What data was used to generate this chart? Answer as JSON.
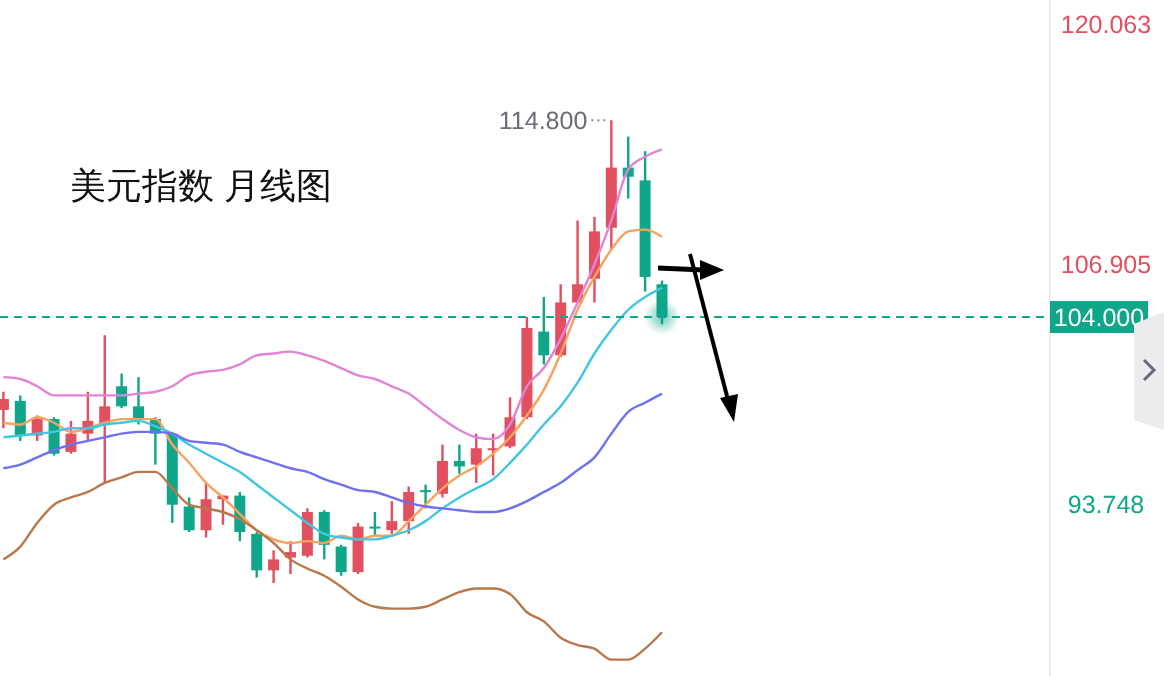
{
  "chart_data": {
    "type": "candlestick",
    "title": "美元指数 月线图",
    "categories": [
      null,
      null,
      null,
      null,
      null,
      null,
      null,
      null,
      null,
      null,
      null,
      null,
      null,
      null,
      null,
      null,
      null,
      null,
      null,
      null,
      null,
      null,
      null,
      null,
      null,
      null,
      null,
      null,
      null,
      null,
      null,
      null,
      null,
      null,
      null,
      null,
      null,
      null,
      null,
      null
    ],
    "ohlc": [
      [
        98.9,
        99.9,
        97.9,
        99.5
      ],
      [
        99.4,
        99.7,
        97.2,
        97.5
      ],
      [
        97.5,
        98.6,
        97.2,
        98.4
      ],
      [
        98.4,
        98.5,
        96.4,
        96.5
      ],
      [
        96.6,
        98.3,
        96.5,
        97.6
      ],
      [
        97.6,
        99.9,
        97.2,
        98.3
      ],
      [
        98.1,
        103.0,
        94.9,
        99.1
      ],
      [
        100.2,
        100.9,
        99.0,
        99.1
      ],
      [
        99.1,
        100.7,
        98.1,
        98.4
      ],
      [
        98.4,
        98.5,
        95.9,
        97.6
      ],
      [
        97.6,
        97.7,
        92.7,
        93.7
      ],
      [
        93.6,
        94.1,
        92.2,
        92.3
      ],
      [
        92.3,
        94.9,
        91.9,
        94.0
      ],
      [
        94.0,
        94.2,
        92.6,
        94.2
      ],
      [
        94.2,
        94.4,
        91.7,
        92.2
      ],
      [
        92.1,
        92.2,
        89.7,
        90.1
      ],
      [
        90.1,
        91.2,
        89.4,
        90.7
      ],
      [
        90.8,
        91.7,
        89.9,
        91.1
      ],
      [
        90.9,
        93.5,
        90.8,
        93.3
      ],
      [
        93.3,
        93.4,
        90.7,
        91.5
      ],
      [
        91.4,
        91.5,
        89.8,
        90.0
      ],
      [
        90.0,
        92.7,
        89.9,
        92.5
      ],
      [
        92.5,
        93.3,
        92.0,
        92.4
      ],
      [
        92.3,
        93.9,
        92.1,
        92.8
      ],
      [
        92.8,
        94.7,
        92.1,
        94.4
      ],
      [
        94.5,
        94.8,
        93.5,
        94.4
      ],
      [
        94.3,
        97.0,
        94.1,
        96.1
      ],
      [
        96.1,
        97.0,
        95.4,
        95.8
      ],
      [
        95.9,
        97.6,
        94.9,
        96.8
      ],
      [
        96.7,
        97.6,
        95.3,
        96.8
      ],
      [
        96.9,
        99.6,
        96.8,
        98.5
      ],
      [
        98.5,
        104.0,
        98.4,
        103.4
      ],
      [
        103.2,
        105.1,
        101.4,
        101.9
      ],
      [
        101.9,
        105.8,
        101.8,
        104.8
      ],
      [
        104.8,
        109.3,
        104.8,
        105.8
      ],
      [
        106.1,
        109.5,
        104.8,
        108.7
      ],
      [
        108.9,
        114.8,
        107.7,
        112.2
      ],
      [
        112.2,
        113.9,
        110.5,
        111.7
      ],
      [
        111.5,
        113.1,
        105.4,
        106.2
      ],
      [
        105.8,
        106.0,
        103.6,
        104.0
      ]
    ],
    "colors": [
      "#e0505f",
      "#0fa68a",
      "#e0505f",
      "#0fa68a",
      "#e0505f",
      "#e0505f",
      "#e0505f",
      "#0fa68a",
      "#0fa68a",
      "#0fa68a",
      "#0fa68a",
      "#0fa68a",
      "#e0505f",
      "#e0505f",
      "#0fa68a",
      "#0fa68a",
      "#e0505f",
      "#e0505f",
      "#e0505f",
      "#0fa68a",
      "#0fa68a",
      "#e0505f",
      "#0fa68a",
      "#e0505f",
      "#e0505f",
      "#0fa68a",
      "#e0505f",
      "#0fa68a",
      "#e0505f",
      "#e0505f",
      "#e0505f",
      "#e0505f",
      "#0fa68a",
      "#e0505f",
      "#e0505f",
      "#e0505f",
      "#e0505f",
      "#0fa68a",
      "#0fa68a",
      "#0fa68a"
    ],
    "series": [
      {
        "type": "line",
        "color": "#e184d6",
        "values": [
          100.7,
          100.6,
          100.2,
          99.7,
          99.7,
          99.7,
          99.7,
          99.7,
          99.8,
          99.9,
          100.2,
          100.8,
          101.0,
          101.1,
          101.4,
          101.9,
          102.0,
          102.1,
          101.9,
          101.6,
          101.2,
          100.8,
          100.6,
          100.2,
          99.8,
          99.1,
          98.4,
          97.8,
          97.4,
          97.3,
          98.1,
          100.2,
          101.2,
          102.8,
          104.8,
          106.9,
          109.3,
          112.1,
          112.8,
          113.2
        ]
      },
      {
        "type": "line",
        "color": "#f7a25e",
        "values": [
          98.2,
          98.1,
          98.5,
          98.2,
          97.7,
          97.9,
          98.2,
          98.4,
          98.4,
          98.4,
          97.0,
          96.0,
          94.9,
          94.1,
          93.2,
          92.3,
          91.8,
          91.6,
          91.7,
          91.6,
          92.0,
          91.8,
          92.0,
          92.0,
          92.8,
          93.7,
          94.6,
          95.3,
          95.8,
          96.5,
          97.4,
          98.6,
          100.0,
          102.0,
          104.4,
          106.2,
          107.7,
          108.7,
          108.8,
          108.4
        ]
      },
      {
        "type": "line",
        "color": "#41c6e2",
        "values": [
          97.4,
          97.5,
          97.6,
          97.7,
          97.9,
          97.9,
          98.1,
          98.2,
          98.3,
          98.0,
          97.6,
          97.0,
          96.5,
          96.0,
          95.5,
          94.8,
          94.1,
          93.4,
          92.7,
          92.1,
          91.9,
          91.8,
          91.8,
          92.0,
          92.3,
          92.8,
          93.5,
          94.1,
          94.6,
          95.1,
          96.0,
          97.0,
          98.1,
          99.1,
          100.4,
          102.0,
          103.3,
          104.4,
          105.1,
          105.6
        ]
      },
      {
        "type": "line",
        "color": "#6f6ff0",
        "values": [
          95.7,
          95.9,
          96.3,
          96.7,
          97.0,
          97.2,
          97.4,
          97.6,
          97.7,
          97.7,
          97.6,
          97.2,
          97.1,
          97.0,
          96.6,
          96.3,
          96.0,
          95.7,
          95.5,
          95.1,
          94.8,
          94.5,
          94.4,
          94.1,
          93.8,
          93.6,
          93.5,
          93.4,
          93.3,
          93.3,
          93.5,
          93.9,
          94.4,
          94.9,
          95.6,
          96.3,
          97.6,
          98.8,
          99.3,
          99.8
        ]
      },
      {
        "type": "line",
        "color": "#b8784c",
        "values": [
          90.7,
          91.4,
          92.7,
          93.7,
          94.1,
          94.4,
          94.9,
          95.2,
          95.5,
          95.5,
          94.6,
          93.7,
          93.5,
          93.3,
          92.9,
          92.3,
          91.6,
          90.7,
          90.2,
          89.8,
          89.2,
          88.5,
          88.1,
          88.0,
          88.0,
          88.1,
          88.5,
          88.9,
          89.1,
          89.1,
          88.8,
          87.8,
          87.3,
          86.4,
          86.0,
          85.8,
          85.2,
          85.2,
          85.8,
          86.7
        ]
      }
    ],
    "ylim": [
      84.3,
      121.4
    ],
    "yticks": [
      120.063,
      106.905,
      93.748
    ],
    "tick_labels": "y",
    "ref_lines": [
      {
        "axis": "y",
        "value": 104.0,
        "label": "104.000",
        "color": "#0fa68a",
        "line_style": "dashed"
      }
    ],
    "annotations": [
      "114.800"
    ]
  }
}
